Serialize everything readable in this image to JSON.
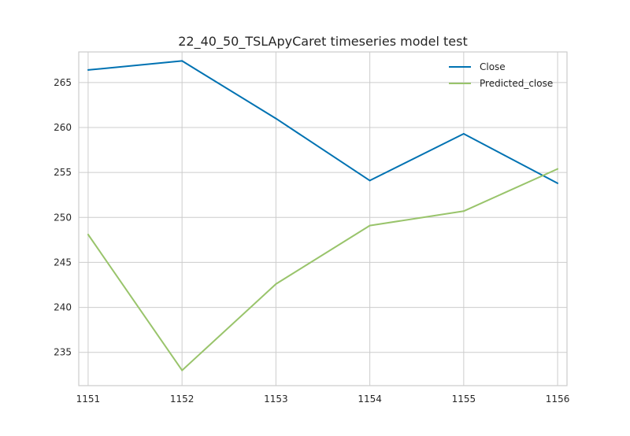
{
  "chart_data": {
    "type": "line",
    "title": "22_40_50_TSLApyCaret timeseries model test",
    "xlabel": "",
    "ylabel": "",
    "x": [
      1151,
      1152,
      1153,
      1154,
      1155,
      1156
    ],
    "xlim": [
      1150.9,
      1156.1
    ],
    "ylim": [
      231.3,
      268.4
    ],
    "yticks": [
      235,
      240,
      245,
      250,
      255,
      260,
      265
    ],
    "grid": true,
    "legend_position": "top-right",
    "series": [
      {
        "name": "Close",
        "color": "#0072b2",
        "values": [
          266.4,
          267.4,
          261.0,
          254.1,
          259.3,
          253.8
        ]
      },
      {
        "name": "Predicted_close",
        "color": "#99c46b",
        "values": [
          248.1,
          233.0,
          242.6,
          249.1,
          250.7,
          255.4
        ]
      }
    ]
  }
}
